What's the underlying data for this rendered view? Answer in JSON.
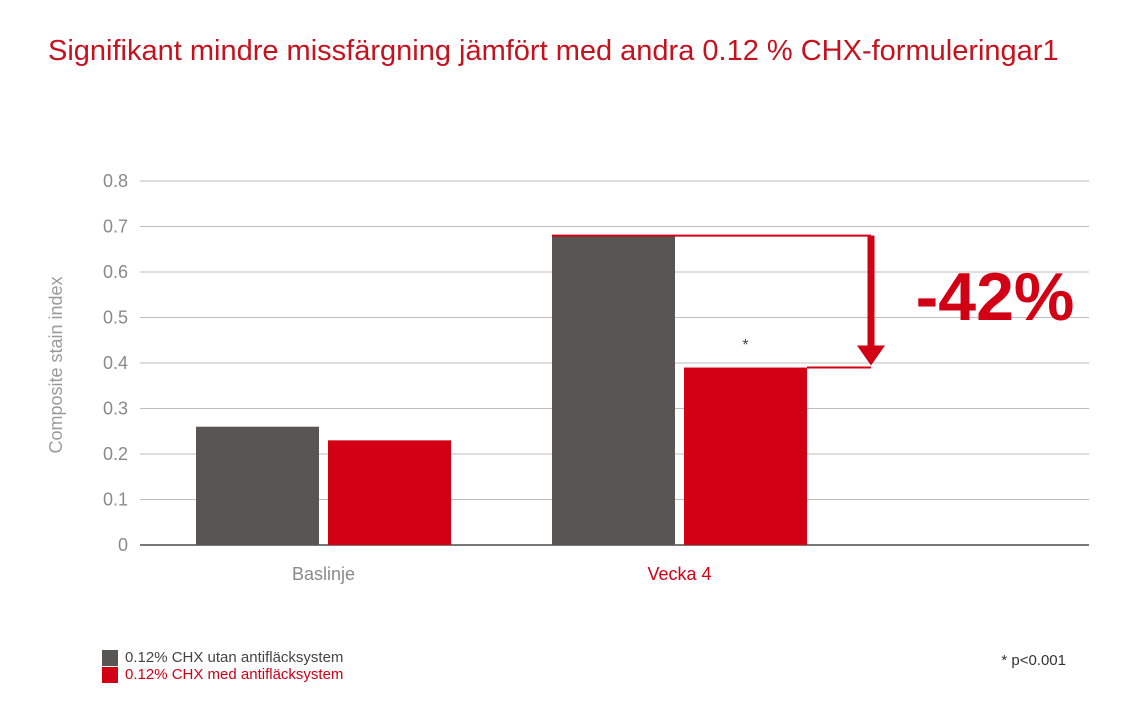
{
  "title": "Signifikant mindre missfärgning jämfört med andra 0.12 % CHX-formuleringar1",
  "colors": {
    "grey": "#575654",
    "red": "#d10015",
    "title": "#c4121f",
    "grid": "#bdbdbd",
    "axis": "#777777"
  },
  "chart_data": {
    "type": "bar",
    "ylabel": "Composite stain index",
    "ylim": [
      0,
      0.8
    ],
    "yticks": [
      "0",
      "0.1",
      "0.2",
      "0.3",
      "0.4",
      "0.5",
      "0.6",
      "0.7",
      "0.8"
    ],
    "categories": [
      "Baslinje",
      "Vecka 4"
    ],
    "series": [
      {
        "name": "0.12% CHX utan antifläcksystem",
        "values": [
          0.26,
          0.68
        ]
      },
      {
        "name": "0.12% CHX med antifläcksystem",
        "values": [
          0.23,
          0.39
        ]
      }
    ],
    "annotations": {
      "reduction": "-42%",
      "significance_marker": "*"
    }
  },
  "footnote": "* p<0.001"
}
